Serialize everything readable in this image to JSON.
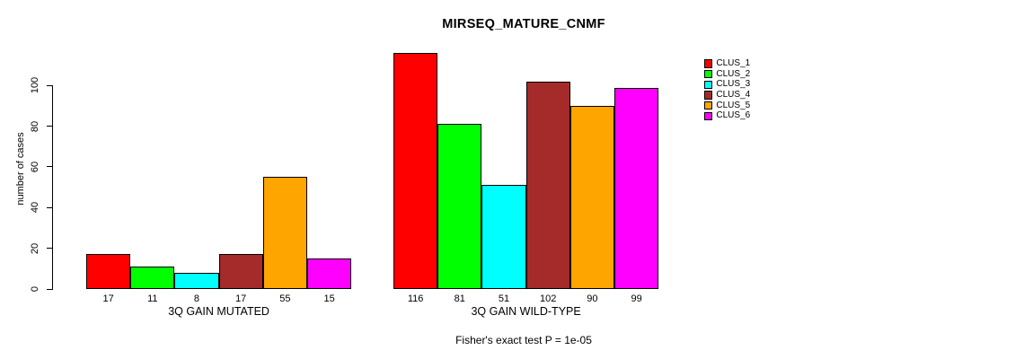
{
  "header": {
    "title": "MIRSEQ_MATURE_CNMF"
  },
  "footer": {
    "caption": "Fisher's exact test P = 1e-05"
  },
  "chart_data": {
    "type": "bar",
    "title": "MIRSEQ_MATURE_CNMF",
    "ylabel": "number of cases",
    "xlabel": "",
    "categories": [
      "3Q GAIN MUTATED",
      "3Q GAIN WILD-TYPE"
    ],
    "series": [
      {
        "name": "CLUS_1",
        "color": "#FF0000",
        "values": [
          17,
          116
        ]
      },
      {
        "name": "CLUS_2",
        "color": "#00FF00",
        "values": [
          11,
          81
        ]
      },
      {
        "name": "CLUS_3",
        "color": "#00FFFF",
        "values": [
          8,
          51
        ]
      },
      {
        "name": "CLUS_4",
        "color": "#A52A2A",
        "values": [
          17,
          102
        ]
      },
      {
        "name": "CLUS_5",
        "color": "#FFA500",
        "values": [
          55,
          90
        ]
      },
      {
        "name": "CLUS_6",
        "color": "#FF00FF",
        "values": [
          15,
          99
        ]
      }
    ],
    "yticks": [
      0,
      20,
      40,
      60,
      80,
      100
    ],
    "ylim": [
      0,
      100
    ],
    "bar_value_labels": true,
    "legend_position": "right",
    "grid": false,
    "annotation": "Fisher's exact test P = 1e-05"
  }
}
